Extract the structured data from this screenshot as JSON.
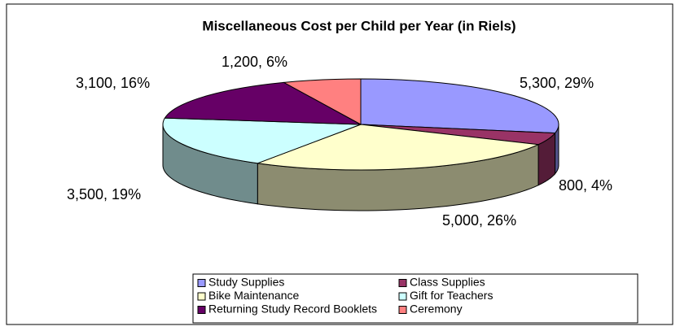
{
  "chart_data": {
    "type": "pie",
    "title": "Miscellaneous Cost per Child per Year (in Riels)",
    "categories": [
      "Study Supplies",
      "Class Supplies",
      "Bike Maintenance",
      "Gift for Teachers",
      "Returning Study Record Booklets",
      "Ceremony"
    ],
    "values": [
      5300,
      800,
      5000,
      3500,
      3100,
      1200
    ],
    "value_labels": [
      "5,300, 29%",
      "800, 4%",
      "5,000, 26%",
      "3,500, 19%",
      "3,100, 16%",
      "1,200, 6%"
    ],
    "colors": [
      "#9999ff",
      "#993366",
      "#ffffcc",
      "#ccffff",
      "#660066",
      "#ff8080"
    ],
    "legend": "bottom"
  }
}
